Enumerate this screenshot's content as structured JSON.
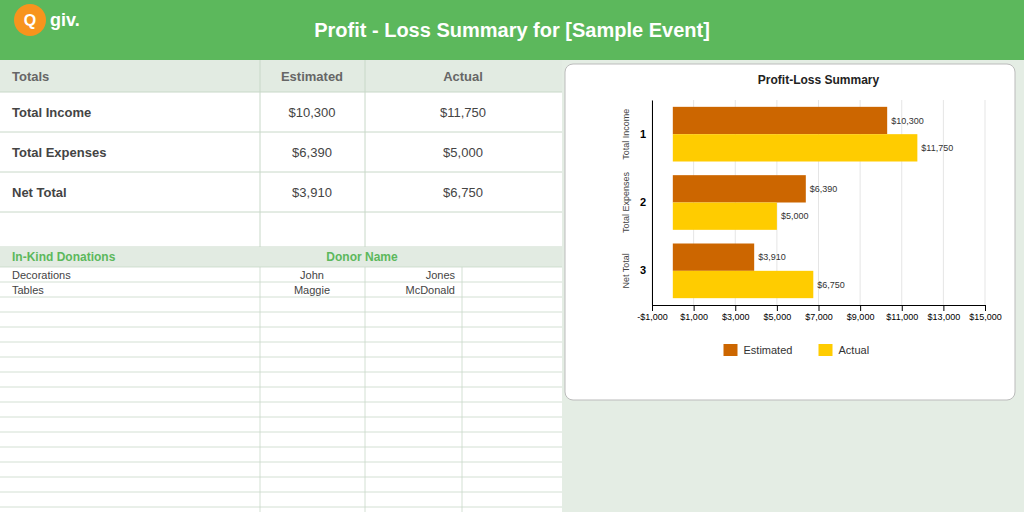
{
  "chart_data": [
    {
      "type": "table",
      "title": "Profit - Loss Summary for [Sample Event]",
      "annotations": [
        "Q",
        "giv.",
        "Totals"
      ],
      "categories": [
        "Total Income",
        "Total Expenses",
        "Net Total"
      ],
      "series": [
        {
          "name": "Estimated",
          "values": [
            10300,
            6390,
            3910
          ],
          "value_labels": [
            "$10,300",
            "$6,390",
            "$3,910"
          ]
        },
        {
          "name": "Actual",
          "values": [
            11750,
            5000,
            6750
          ],
          "value_labels": [
            "$11,750",
            "$5,000",
            "$6,750"
          ]
        }
      ]
    },
    {
      "type": "table",
      "title": "In-Kind Donations",
      "categories": [
        "Decorations",
        "Tables"
      ],
      "annotations": [
        "Donor Name",
        "John",
        "Jones",
        "Maggie",
        "McDonald"
      ]
    },
    {
      "type": "bar",
      "orientation": "horizontal",
      "title": "Profit-Loss Summary",
      "categories": [
        "1",
        "2",
        "3"
      ],
      "annotations": [
        "Total Income",
        "Total Expenses",
        "Net Total"
      ],
      "series": [
        {
          "name": "Estimated",
          "color": "#cc6600",
          "values": [
            10300,
            6390,
            3910
          ],
          "value_labels": [
            "$10,300",
            "$6,390",
            "$3,910"
          ]
        },
        {
          "name": "Actual",
          "color": "#ffcc00",
          "values": [
            11750,
            5000,
            6750
          ],
          "value_labels": [
            "$11,750",
            "$5,000",
            "$6,750"
          ]
        }
      ],
      "xlim": [
        -1000,
        15000
      ],
      "xticks": [
        {
          "value": -1000,
          "label": "-$1,000"
        },
        {
          "value": 1000,
          "label": "$1,000"
        },
        {
          "value": 3000,
          "label": "$3,000"
        },
        {
          "value": 5000,
          "label": "$5,000"
        },
        {
          "value": 7000,
          "label": "$7,000"
        },
        {
          "value": 9000,
          "label": "$9,000"
        },
        {
          "value": 11000,
          "label": "$11,000"
        },
        {
          "value": 13000,
          "label": "$13,000"
        },
        {
          "value": 15000,
          "label": "$15,000"
        }
      ],
      "grid": true,
      "legend": "bottom",
      "data_labels": true
    }
  ]
}
